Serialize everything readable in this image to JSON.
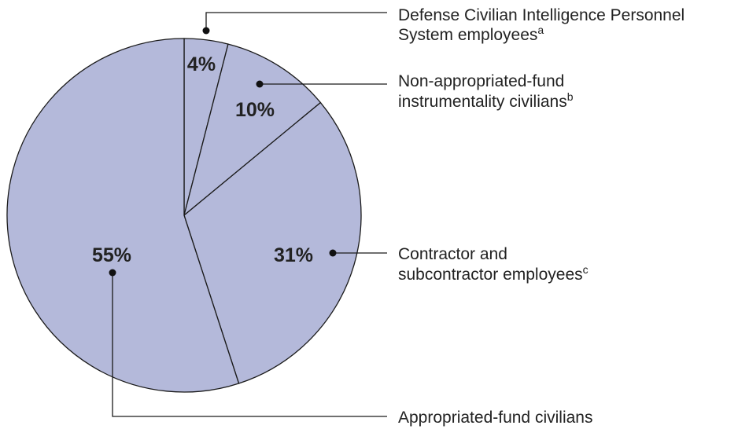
{
  "colors": {
    "slice_fill": "#b4b9da",
    "outline": "#1a1a1a",
    "text": "#222222"
  },
  "chart_data": {
    "type": "pie",
    "title": "",
    "slices": [
      {
        "percent": 4,
        "value_label": "4%",
        "label": "Defense Civilian Intelligence Personnel System employees",
        "footnote": "a"
      },
      {
        "percent": 10,
        "value_label": "10%",
        "label": "Non-appropriated-fund instrumentality civilians",
        "footnote": "b"
      },
      {
        "percent": 31,
        "value_label": "31%",
        "label": "Contractor and subcontractor employees",
        "footnote": "c"
      },
      {
        "percent": 55,
        "value_label": "55%",
        "label": "Appropriated-fund civilians",
        "footnote": ""
      }
    ]
  },
  "legend": {
    "dcips": {
      "line1": "Defense Civilian Intelligence Personnel",
      "line2": "System employees",
      "sup": "a"
    },
    "nafi": {
      "line1": "Non-appropriated-fund",
      "line2": "instrumentality civilians",
      "sup": "b"
    },
    "contractor": {
      "line1": "Contractor and",
      "line2": "subcontractor employees",
      "sup": "c"
    },
    "appropriated": {
      "line1": "Appropriated-fund civilians"
    }
  }
}
